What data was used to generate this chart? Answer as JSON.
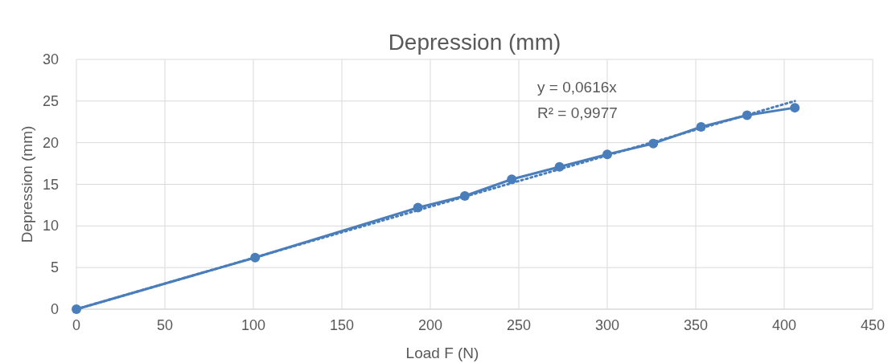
{
  "chart_data": {
    "type": "line",
    "title": "Depression (mm)",
    "xlabel": "Load F (N)",
    "ylabel": "Depression (mm)",
    "x": [
      0,
      101,
      193,
      219.5,
      246,
      273,
      300,
      326,
      353,
      379,
      406
    ],
    "series": [
      {
        "color": "#4a7ebb",
        "values": [
          0,
          6.2,
          12.2,
          13.6,
          15.6,
          17.1,
          18.6,
          19.9,
          21.9,
          23.3,
          24.2
        ],
        "marker": "circle",
        "line_style": "solid"
      },
      {
        "type": "line",
        "x": [
          0,
          406
        ],
        "color": "#4a7ebb",
        "values": [
          0,
          25.0
        ],
        "marker": "none",
        "line_style": "dotted"
      }
    ],
    "xlim": [
      0,
      450
    ],
    "xticks": [
      0,
      50,
      100,
      150,
      200,
      250,
      300,
      350,
      400,
      450
    ],
    "ylim": [
      0,
      30
    ],
    "yticks": [
      0,
      5,
      10,
      15,
      20,
      25,
      30
    ],
    "grid": true,
    "annotations": [
      "y = 0,0616x",
      "R² = 0,9977"
    ]
  }
}
